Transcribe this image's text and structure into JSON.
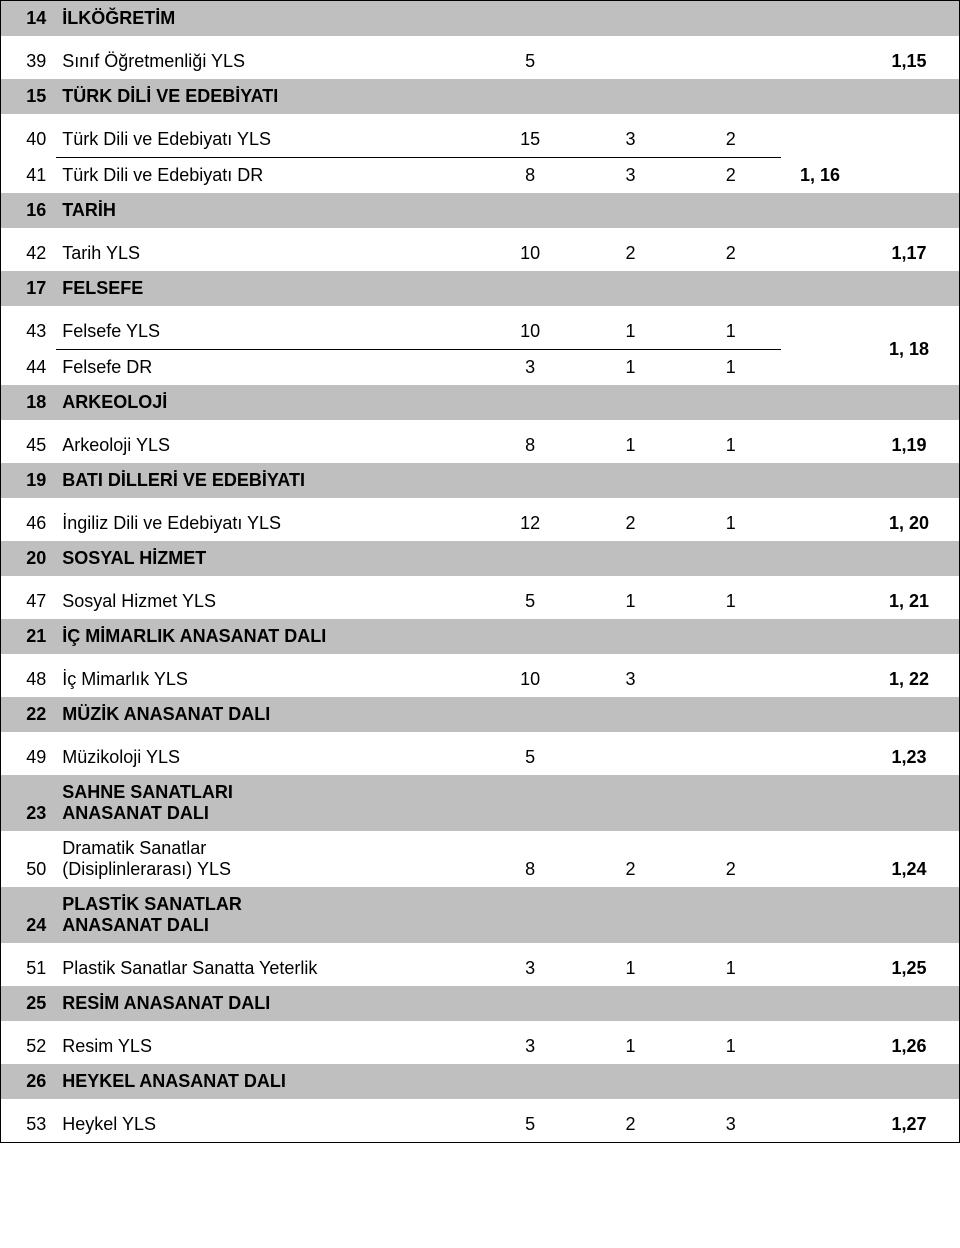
{
  "colors": {
    "header_bg": "#bfbfbf",
    "text": "#000000",
    "bg": "#ffffff",
    "border": "#000000"
  },
  "fonts": {
    "family": "Arial",
    "base_size_pt": 13,
    "bold_weight": "bold"
  },
  "columns": {
    "num_width": 50,
    "name_width": 380,
    "val_width": 90
  },
  "sections": [
    {
      "num": "14",
      "title": "İLKÖĞRETİM",
      "rows": [
        {
          "n": "39",
          "name": "Sınıf Öğretmenliği YLS",
          "v1": "5",
          "v2": "",
          "v3": "",
          "v5": "1,15"
        }
      ]
    },
    {
      "num": "15",
      "title": "TÜRK DİLİ VE EDEBİYATI",
      "rows": [
        {
          "n": "40",
          "name": "Türk Dili ve Edebiyatı YLS",
          "v1": "15",
          "v2": "3",
          "v3": "2",
          "v5": "",
          "underline": true
        },
        {
          "n": "41",
          "name": "Türk Dili ve Edebiyatı DR",
          "v1": "8",
          "v2": "3",
          "v3": "2",
          "v5": "1, 16"
        }
      ]
    },
    {
      "num": "16",
      "title": "TARİH",
      "rows": [
        {
          "n": "42",
          "name": "Tarih YLS",
          "v1": "10",
          "v2": "2",
          "v3": "2",
          "v5": "1,17"
        }
      ]
    },
    {
      "num": "17",
      "title": "FELSEFE",
      "rows": [
        {
          "n": "43",
          "name": "Felsefe YLS",
          "v1": "10",
          "v2": "1",
          "v3": "1",
          "v5": "",
          "underline": true,
          "v5rowspan": "1, 18"
        },
        {
          "n": "44",
          "name": "Felsefe DR",
          "v1": "3",
          "v2": "1",
          "v3": "1",
          "v5": ""
        }
      ],
      "v5_shared": "1, 18"
    },
    {
      "num": "18",
      "title": "ARKEOLOJİ",
      "rows": [
        {
          "n": "45",
          "name": "Arkeoloji YLS",
          "v1": "8",
          "v2": "1",
          "v3": "1",
          "v5": "1,19"
        }
      ]
    },
    {
      "num": "19",
      "title": "BATI DİLLERİ VE EDEBİYATI",
      "rows": [
        {
          "n": "46",
          "name": "İngiliz Dili ve Edebiyatı YLS",
          "v1": "12",
          "v2": "2",
          "v3": "1",
          "v5": "1, 20"
        }
      ]
    },
    {
      "num": "20",
      "title": "SOSYAL HİZMET",
      "rows": [
        {
          "n": "47",
          "name": "Sosyal Hizmet  YLS",
          "v1": "5",
          "v2": "1",
          "v3": "1",
          "v5": "1, 21"
        }
      ]
    },
    {
      "num": "21",
      "title": "İÇ MİMARLIK ANASANAT DALI",
      "rows": [
        {
          "n": "48",
          "name": "İç Mimarlık YLS",
          "v1": "10",
          "v2": "3",
          "v3": "",
          "v5": "1, 22"
        }
      ]
    },
    {
      "num": "22",
      "title": "MÜZİK ANASANAT DALI",
      "rows": [
        {
          "n": "49",
          "name": "Müzikoloji YLS",
          "v1": "5",
          "v2": "",
          "v3": "",
          "v5": "1,23"
        }
      ]
    },
    {
      "num": "23",
      "title": "SAHNE SANATLARI ANASANAT DALI",
      "title_multiline": [
        "SAHNE SANATLARI",
        "ANASANAT DALI"
      ],
      "rows": [
        {
          "n": "50",
          "name_multiline": [
            "Dramatik Sanatlar",
            "(Disiplinlerarası) YLS"
          ],
          "v1": "8",
          "v2": "2",
          "v3": "2",
          "v5": "1,24"
        }
      ]
    },
    {
      "num": "24",
      "title": "PLASTİK SANATLAR ANASANAT DALI",
      "title_multiline": [
        "PLASTİK SANATLAR",
        "ANASANAT DALI"
      ],
      "rows": [
        {
          "n": "51",
          "name": "Plastik Sanatlar Sanatta Yeterlik",
          "v1": "3",
          "v2": "1",
          "v3": "1",
          "v5": "1,25"
        }
      ]
    },
    {
      "num": "25",
      "title": "RESİM ANASANAT DALI",
      "rows": [
        {
          "n": "52",
          "name": "Resim YLS",
          "v1": "3",
          "v2": "1",
          "v3": "1",
          "v5": "1,26"
        }
      ]
    },
    {
      "num": "26",
      "title": "HEYKEL ANASANAT DALI",
      "rows": [
        {
          "n": "53",
          "name": "Heykel  YLS",
          "v1": "5",
          "v2": "2",
          "v3": "3",
          "v5": "1,27"
        }
      ]
    }
  ]
}
